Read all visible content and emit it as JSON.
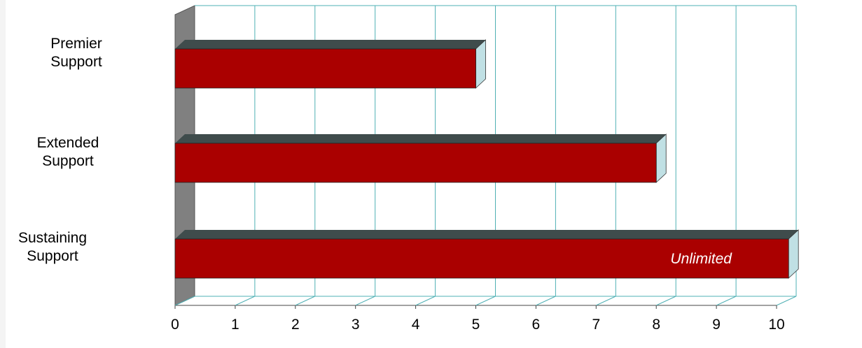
{
  "chart_data": {
    "type": "bar",
    "orientation": "horizontal",
    "categories": [
      "Premier\nSupport",
      "Extended\nSupport",
      "Sustaining\nSupport"
    ],
    "values": [
      5,
      8,
      10.2
    ],
    "data_labels": [
      "",
      "",
      "Unlimited"
    ],
    "xlim": [
      0,
      10
    ],
    "x_ticks": [
      "0",
      "1",
      "2",
      "3",
      "4",
      "5",
      "6",
      "7",
      "8",
      "9",
      "10"
    ],
    "grid": true,
    "legend": "none",
    "colors": {
      "bar_front": "#aa0000",
      "bar_top": "#3f4c4c",
      "bar_side": "#c0e0e4",
      "grid": "#4fb0b4",
      "left_wall": "#808080"
    }
  }
}
